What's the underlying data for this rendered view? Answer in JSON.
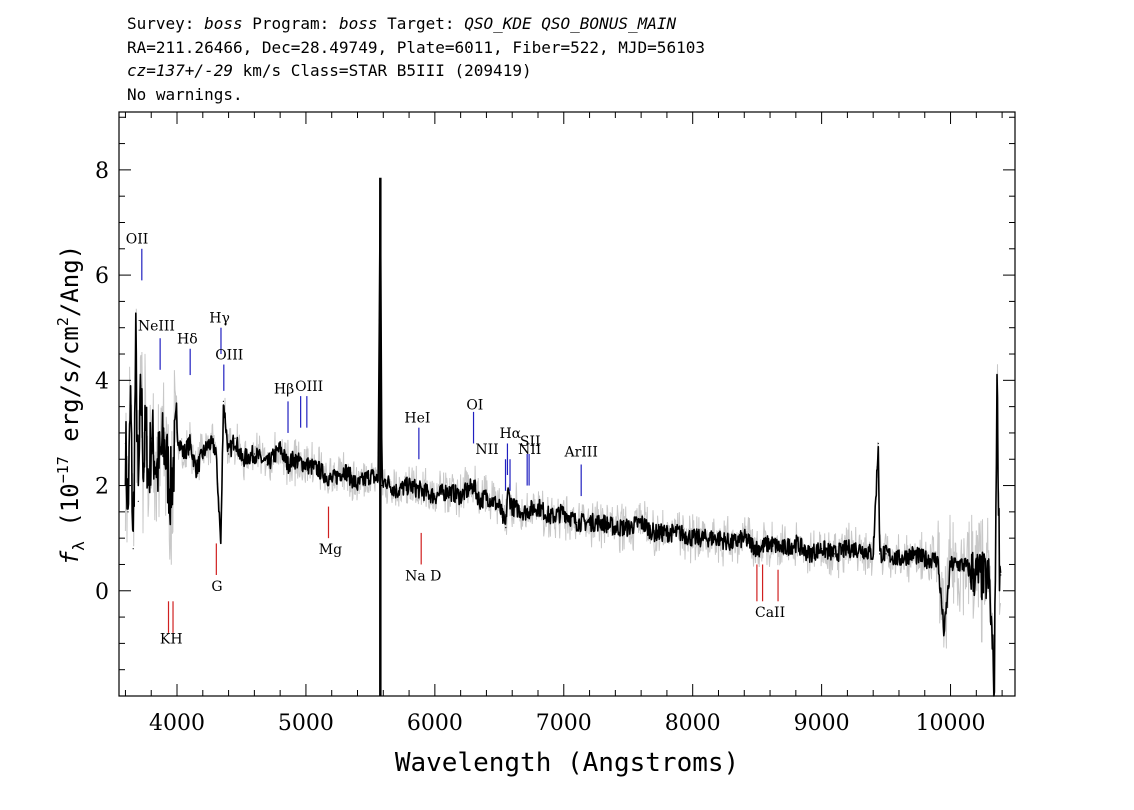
{
  "header": {
    "line1": {
      "survey_label": "Survey:",
      "survey": "boss",
      "program_label": "Program:",
      "program": "boss",
      "target_label": "Target:",
      "target": "QSO_KDE QSO_BONUS_MAIN"
    },
    "line2": "RA=211.26466, Dec=28.49749, Plate=6011, Fiber=522, MJD=56103",
    "line3": {
      "cz": "cz=137+/-29",
      "rest": " km/s Class=STAR B5III (209419)"
    },
    "line4": "No warnings."
  },
  "chart_data": {
    "type": "line",
    "xlabel": "Wavelength (Angstroms)",
    "ylabel": "f_λ (10^-17 erg/s/cm^2/Ang)",
    "ylabel_parts": {
      "symbol": "f",
      "sub": "λ",
      "pre": " (10",
      "exp1": "−17",
      "mid": " erg/s/cm",
      "exp2": "2",
      "post": "/Ang)"
    },
    "xlim": [
      3550,
      10500
    ],
    "ylim": [
      -2,
      9.1
    ],
    "xticks": [
      4000,
      5000,
      6000,
      7000,
      8000,
      9000,
      10000
    ],
    "xtick_labels": [
      "4000",
      "5000",
      "6000",
      "7000",
      "8000",
      "9000",
      "10000"
    ],
    "yticks": [
      0,
      2,
      4,
      6,
      8
    ],
    "ytick_labels": [
      "0",
      "2",
      "4",
      "6",
      "8"
    ],
    "colors": {
      "spectrum": "#000000",
      "error_band": "#c8c8c8",
      "emission": "#2020c0",
      "absorption": "#d02020"
    },
    "series": [
      {
        "name": "",
        "x": [
          3600,
          3620,
          3640,
          3660,
          3680,
          3700,
          3720,
          3740,
          3760,
          3780,
          3800,
          3850,
          3900,
          3950,
          4000,
          4050,
          4100,
          4150,
          4200,
          4250,
          4300,
          4340,
          4360,
          4400,
          4450,
          4500,
          4600,
          4700,
          4800,
          4860,
          4900,
          5000,
          5100,
          5200,
          5300,
          5400,
          5500,
          5560,
          5577,
          5590,
          5620,
          5700,
          5800,
          5900,
          6000,
          6100,
          6200,
          6300,
          6350,
          6400,
          6450,
          6500,
          6550,
          6563,
          6600,
          6700,
          6800,
          6900,
          7000,
          7100,
          7200,
          7300,
          7400,
          7500,
          7600,
          7700,
          7800,
          7900,
          8000,
          8100,
          8200,
          8300,
          8400,
          8500,
          8600,
          8700,
          8800,
          8900,
          9000,
          9100,
          9200,
          9300,
          9400,
          9440,
          9450,
          9500,
          9600,
          9700,
          9800,
          9900,
          9950,
          10000,
          10100,
          10200,
          10300,
          10340,
          10360,
          10380,
          10390
        ],
        "y": [
          2.8,
          1.5,
          3.6,
          0.8,
          4.6,
          1.7,
          3.9,
          2.4,
          3.1,
          2.0,
          2.9,
          2.3,
          2.8,
          1.9,
          3.0,
          2.6,
          2.8,
          2.3,
          2.6,
          2.8,
          2.7,
          0.9,
          3.6,
          2.6,
          2.9,
          2.5,
          2.6,
          2.4,
          2.7,
          2.4,
          2.5,
          2.4,
          2.3,
          2.1,
          2.3,
          2.0,
          2.2,
          2.1,
          7.8,
          2.0,
          2.1,
          1.9,
          2.0,
          1.9,
          1.8,
          1.9,
          1.8,
          2.0,
          1.7,
          1.8,
          1.7,
          1.6,
          1.2,
          1.9,
          1.6,
          1.5,
          1.6,
          1.4,
          1.5,
          1.3,
          1.3,
          1.3,
          1.2,
          1.2,
          1.3,
          1.1,
          1.1,
          1.1,
          1.0,
          1.0,
          1.0,
          0.9,
          1.0,
          0.8,
          0.9,
          0.8,
          0.9,
          0.7,
          0.8,
          0.7,
          0.8,
          0.8,
          0.7,
          2.8,
          0.7,
          0.7,
          0.6,
          0.7,
          0.6,
          0.6,
          -0.8,
          0.5,
          0.5,
          0.3,
          0.2,
          -1.9,
          4.0,
          0.5,
          0.3
        ]
      }
    ],
    "emission_lines": [
      {
        "label": "OII",
        "x": 3727,
        "y1": 5.9,
        "y2": 6.5
      },
      {
        "label": "NeIII",
        "x": 3869,
        "y1": 4.2,
        "y2": 4.8
      },
      {
        "label": "Hδ",
        "x": 4102,
        "y1": 4.1,
        "y2": 4.6
      },
      {
        "label": "Hγ",
        "x": 4341,
        "y1": 4.5,
        "y2": 5.0
      },
      {
        "label": "OIII",
        "x": 4363,
        "y1": 3.8,
        "y2": 4.3
      },
      {
        "label": "Hβ",
        "x": 4861,
        "y1": 3.0,
        "y2": 3.6
      },
      {
        "label": "OIII",
        "x": 4959,
        "y1": 3.1,
        "y2": 3.7
      },
      {
        "label": "OIII",
        "x": 5007,
        "y1": 3.1,
        "y2": 3.7
      },
      {
        "label": "HeI",
        "x": 5876,
        "y1": 2.5,
        "y2": 3.1
      },
      {
        "label": "OI",
        "x": 6300,
        "y1": 2.8,
        "y2": 3.4
      },
      {
        "label": "NII",
        "x": 6548,
        "y1": 1.9,
        "y2": 2.5
      },
      {
        "label": "Hα",
        "x": 6563,
        "y1": 2.2,
        "y2": 2.8
      },
      {
        "label": "NII",
        "x": 6583,
        "y1": 1.9,
        "y2": 2.5
      },
      {
        "label": "SII",
        "x": 6716,
        "y1": 2.0,
        "y2": 2.6
      },
      {
        "label": "SII",
        "x": 6731,
        "y1": 2.0,
        "y2": 2.6
      },
      {
        "label": "ArIII",
        "x": 7135,
        "y1": 1.8,
        "y2": 2.4
      }
    ],
    "absorption_lines": [
      {
        "label": "K",
        "x": 3934,
        "y1": -0.2,
        "y2": -0.8
      },
      {
        "label": "H",
        "x": 3969,
        "y1": -0.2,
        "y2": -0.8
      },
      {
        "label": "G",
        "x": 4305,
        "y1": 0.9,
        "y2": 0.3
      },
      {
        "label": "Mg",
        "x": 5175,
        "y1": 1.6,
        "y2": 1.0
      },
      {
        "label": "Na D",
        "x": 5894,
        "y1": 1.1,
        "y2": 0.5
      },
      {
        "label": "CaII",
        "x": 8498,
        "y1": 0.5,
        "y2": -0.2
      },
      {
        "label": "CaII",
        "x": 8542,
        "y1": 0.5,
        "y2": -0.2
      },
      {
        "label": "CaII",
        "x": 8662,
        "y1": 0.4,
        "y2": -0.2
      }
    ],
    "absorption_text_labels": [
      {
        "text": "KH",
        "x": 3955,
        "y": -1.0
      },
      {
        "text": "G",
        "x": 4310,
        "y": 0.0
      },
      {
        "text": "Mg",
        "x": 5190,
        "y": 0.7
      },
      {
        "text": "Na D",
        "x": 5910,
        "y": 0.2
      },
      {
        "text": "CaII",
        "x": 8600,
        "y": -0.5
      }
    ],
    "emission_text_labels": [
      {
        "text": "OII",
        "x": 3690,
        "y": 6.6
      },
      {
        "text": "NeIII",
        "x": 3840,
        "y": 4.95
      },
      {
        "text": "Hδ",
        "x": 4080,
        "y": 4.7
      },
      {
        "text": "Hγ",
        "x": 4330,
        "y": 5.1
      },
      {
        "text": "OIII",
        "x": 4405,
        "y": 4.4
      },
      {
        "text": "Hβ",
        "x": 4830,
        "y": 3.75
      },
      {
        "text": "OIII",
        "x": 5025,
        "y": 3.8
      },
      {
        "text": "HeI",
        "x": 5865,
        "y": 3.2
      },
      {
        "text": "OI",
        "x": 6310,
        "y": 3.45
      },
      {
        "text": "NII",
        "x": 6405,
        "y": 2.6
      },
      {
        "text": "Hα",
        "x": 6585,
        "y": 2.9
      },
      {
        "text": "SII",
        "x": 6740,
        "y": 2.75
      },
      {
        "text": "NII",
        "x": 6735,
        "y": 2.6
      },
      {
        "text": "ArIII",
        "x": 7135,
        "y": 2.55
      }
    ]
  }
}
